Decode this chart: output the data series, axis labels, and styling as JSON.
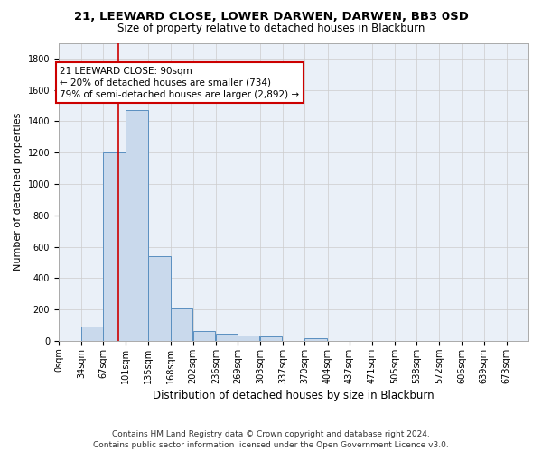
{
  "title": "21, LEEWARD CLOSE, LOWER DARWEN, DARWEN, BB3 0SD",
  "subtitle": "Size of property relative to detached houses in Blackburn",
  "xlabel": "Distribution of detached houses by size in Blackburn",
  "ylabel": "Number of detached properties",
  "footer_line1": "Contains HM Land Registry data © Crown copyright and database right 2024.",
  "footer_line2": "Contains public sector information licensed under the Open Government Licence v3.0.",
  "bar_left_edges": [
    0,
    34,
    67,
    101,
    135,
    168,
    202,
    236,
    269,
    303,
    337,
    370,
    404,
    437,
    471,
    505,
    538,
    572,
    606,
    639
  ],
  "bar_heights": [
    0,
    90,
    1200,
    1470,
    540,
    205,
    65,
    48,
    35,
    28,
    0,
    15,
    0,
    0,
    0,
    0,
    0,
    0,
    0,
    0
  ],
  "bin_width": 33,
  "bar_color": "#c9d9ec",
  "bar_edge_color": "#5a8fc0",
  "grid_color": "#cccccc",
  "background_color": "#eaf0f8",
  "property_line_x": 90,
  "property_line_color": "#cc0000",
  "annotation_line1": "21 LEEWARD CLOSE: 90sqm",
  "annotation_line2": "← 20% of detached houses are smaller (734)",
  "annotation_line3": "79% of semi-detached houses are larger (2,892) →",
  "annotation_box_color": "#cc0000",
  "ylim": [
    0,
    1900
  ],
  "yticks": [
    0,
    200,
    400,
    600,
    800,
    1000,
    1200,
    1400,
    1600,
    1800
  ],
  "xtick_labels": [
    "0sqm",
    "34sqm",
    "67sqm",
    "101sqm",
    "135sqm",
    "168sqm",
    "202sqm",
    "236sqm",
    "269sqm",
    "303sqm",
    "337sqm",
    "370sqm",
    "404sqm",
    "437sqm",
    "471sqm",
    "505sqm",
    "538sqm",
    "572sqm",
    "606sqm",
    "639sqm",
    "673sqm"
  ],
  "title_fontsize": 9.5,
  "subtitle_fontsize": 8.5,
  "ylabel_fontsize": 8,
  "xlabel_fontsize": 8.5,
  "tick_fontsize": 7,
  "annotation_fontsize": 7.5,
  "footer_fontsize": 6.5
}
